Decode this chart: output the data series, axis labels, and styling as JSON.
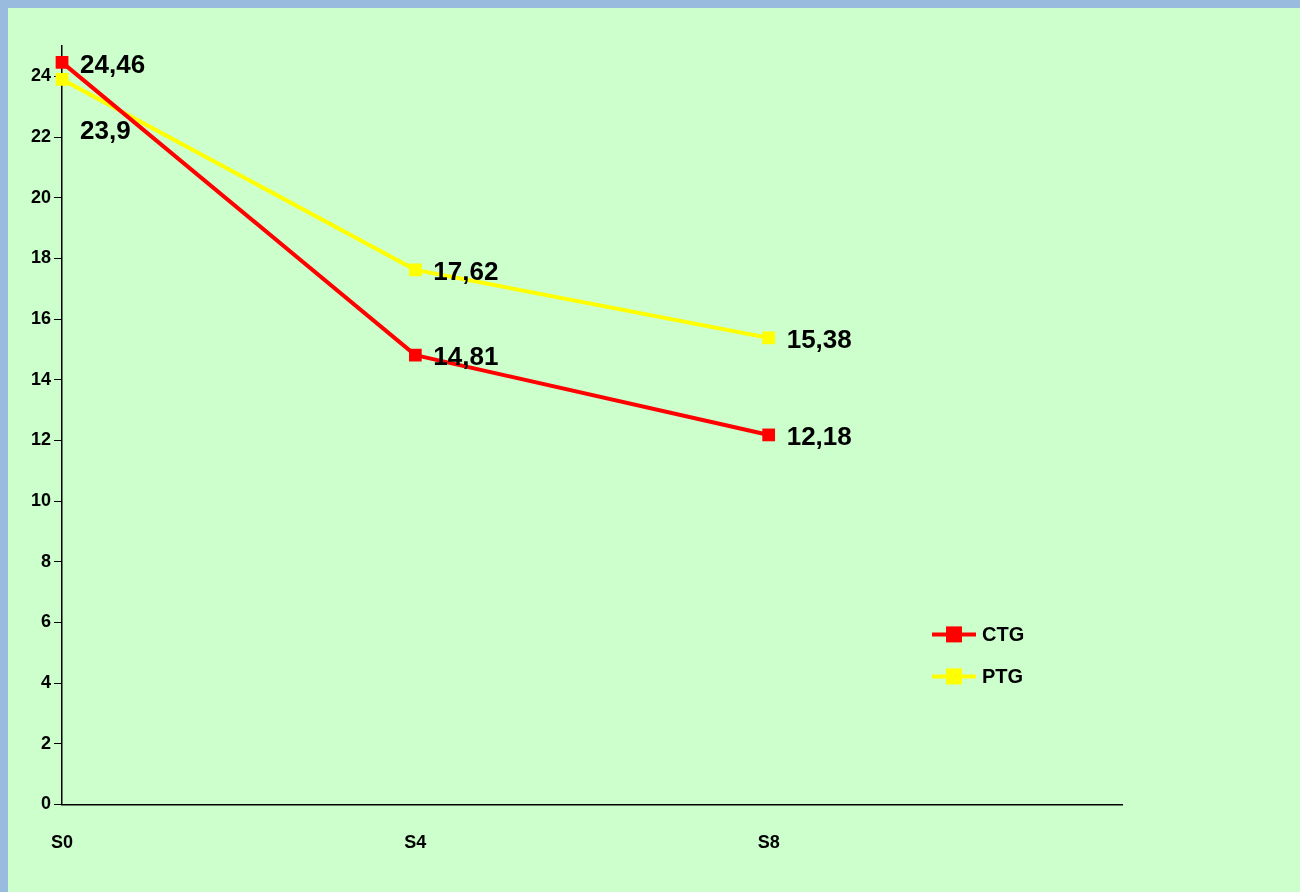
{
  "chart_data": {
    "type": "line",
    "categories": [
      "S0",
      "S4",
      "S8",
      null
    ],
    "series": [
      {
        "name": "CTG",
        "color": "#ff0000",
        "values": [
          24.46,
          14.81,
          12.18,
          null
        ],
        "value_labels": [
          "24,46",
          "14,81",
          "12,18",
          null
        ]
      },
      {
        "name": "PTG",
        "color": "#ffff00",
        "values": [
          23.9,
          17.62,
          15.38,
          null
        ],
        "value_labels": [
          "23,9",
          "17,62",
          "15,38",
          null
        ]
      }
    ],
    "ylim": [
      0,
      25
    ],
    "yticks": [
      0,
      2,
      4,
      6,
      8,
      10,
      12,
      14,
      16,
      18,
      20,
      22,
      24
    ],
    "grid": false,
    "legend": "right",
    "marker": "square",
    "line_style": "solid"
  }
}
